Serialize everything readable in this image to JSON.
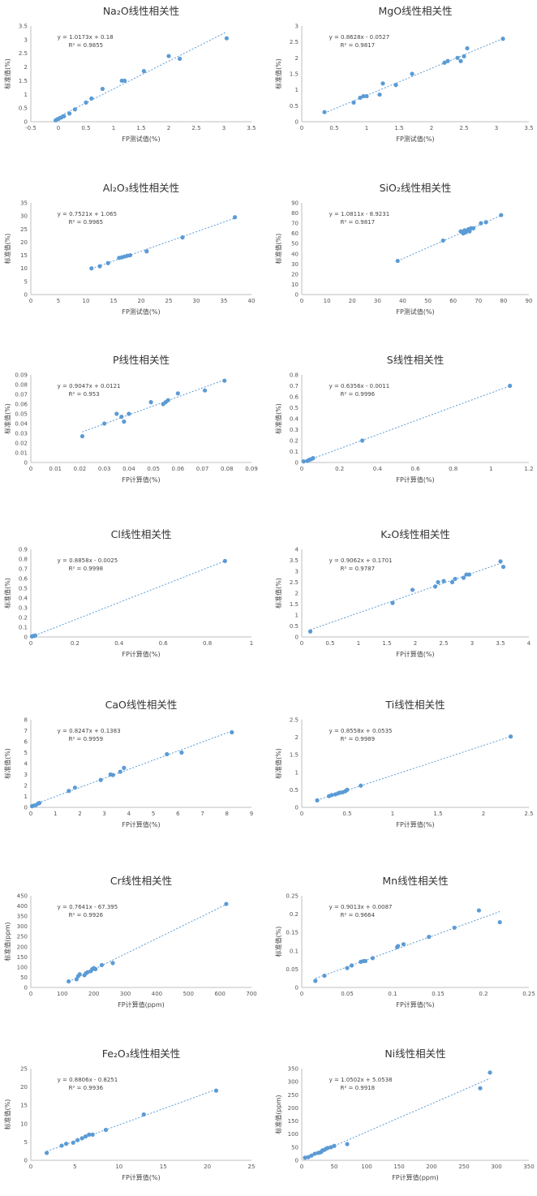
{
  "chart_data": [
    {
      "type": "scatter",
      "title": "Na₂O线性相关性",
      "xlabel": "FP测试值(%)",
      "ylabel": "标准值(%)",
      "xlim": [
        -0.5,
        3.5
      ],
      "ylim": [
        0,
        3.5
      ],
      "xticks": [
        -0.5,
        0,
        0.5,
        1,
        1.5,
        2,
        2.5,
        3,
        3.5
      ],
      "yticks": [
        0,
        0.5,
        1,
        1.5,
        2,
        2.5,
        3,
        3.5
      ],
      "equation": "y = 1.0173x + 0.18",
      "r2": "R² = 0.9855",
      "x": [
        -0.05,
        0,
        0.05,
        0.1,
        0.2,
        0.3,
        0.5,
        0.6,
        0.8,
        1.15,
        1.2,
        1.55,
        2.0,
        2.2,
        3.05
      ],
      "y": [
        0.05,
        0.1,
        0.15,
        0.2,
        0.3,
        0.45,
        0.7,
        0.85,
        1.2,
        1.5,
        1.5,
        1.85,
        2.4,
        2.3,
        3.05
      ]
    },
    {
      "type": "scatter",
      "title": "MgO线性相关性",
      "xlabel": "FP测试值(%)",
      "ylabel": "标准值(%)",
      "xlim": [
        0,
        3.5
      ],
      "ylim": [
        0,
        3
      ],
      "xticks": [
        0,
        0.5,
        1,
        1.5,
        2,
        2.5,
        3,
        3.5
      ],
      "yticks": [
        0,
        0.5,
        1,
        1.5,
        2,
        2.5,
        3
      ],
      "equation": "y = 0.8628x - 0.0527",
      "r2": "R² = 0.9817",
      "x": [
        0.35,
        0.8,
        0.9,
        0.95,
        1.0,
        1.2,
        1.25,
        1.45,
        1.7,
        2.2,
        2.25,
        2.4,
        2.45,
        2.5,
        2.55,
        3.1
      ],
      "y": [
        0.3,
        0.6,
        0.75,
        0.8,
        0.8,
        0.85,
        1.2,
        1.15,
        1.5,
        1.85,
        1.9,
        2.0,
        1.9,
        2.05,
        2.3,
        2.6
      ]
    },
    {
      "type": "scatter",
      "title": "Al₂O₃线性相关性",
      "xlabel": "FP测试值(%)",
      "ylabel": "标准值(%)",
      "xlim": [
        0,
        40
      ],
      "ylim": [
        0,
        35
      ],
      "xticks": [
        0,
        5,
        10,
        15,
        20,
        25,
        30,
        35,
        40
      ],
      "yticks": [
        0,
        5,
        10,
        15,
        20,
        25,
        30,
        35
      ],
      "equation": "y = 0.7521x + 1.065",
      "r2": "R² = 0.9965",
      "x": [
        11,
        12.5,
        14,
        16,
        16.5,
        17,
        17.5,
        18,
        21,
        27.5,
        37
      ],
      "y": [
        10,
        10.8,
        12,
        14,
        14.2,
        14.5,
        14.8,
        15,
        16.5,
        21.8,
        29.5
      ]
    },
    {
      "type": "scatter",
      "title": "SiO₂线性相关性",
      "xlabel": "FP测试值(%)",
      "ylabel": "标准值(%)",
      "xlim": [
        0,
        90
      ],
      "ylim": [
        0,
        90
      ],
      "xticks": [
        0,
        10,
        20,
        30,
        40,
        50,
        60,
        70,
        80,
        90
      ],
      "yticks": [
        0,
        10,
        20,
        30,
        40,
        50,
        60,
        70,
        80,
        90
      ],
      "equation": "y = 1.0811x - 8.9231",
      "r2": "R² = 0.9817",
      "x": [
        38,
        56,
        63,
        64,
        64.5,
        65,
        66,
        66.5,
        67,
        68,
        71,
        73,
        79
      ],
      "y": [
        33,
        53,
        62,
        60,
        63,
        61,
        64,
        62,
        65,
        65,
        70,
        71,
        78
      ]
    },
    {
      "type": "scatter",
      "title": "P线性相关性",
      "xlabel": "FP计算值(%)",
      "ylabel": "标准值(%)",
      "xlim": [
        0,
        0.09
      ],
      "ylim": [
        0,
        0.09
      ],
      "xticks": [
        0,
        0.01,
        0.02,
        0.03,
        0.04,
        0.05,
        0.06,
        0.07,
        0.08,
        0.09
      ],
      "yticks": [
        0,
        0.01,
        0.02,
        0.03,
        0.04,
        0.05,
        0.06,
        0.07,
        0.08,
        0.09
      ],
      "equation": "y = 0.9047x + 0.0121",
      "r2": "R² = 0.953",
      "x": [
        0.021,
        0.03,
        0.035,
        0.037,
        0.038,
        0.04,
        0.049,
        0.054,
        0.055,
        0.056,
        0.06,
        0.071,
        0.079
      ],
      "y": [
        0.027,
        0.04,
        0.05,
        0.047,
        0.042,
        0.05,
        0.062,
        0.06,
        0.062,
        0.064,
        0.071,
        0.074,
        0.084
      ]
    },
    {
      "type": "scatter",
      "title": "S线性相关性",
      "xlabel": "FP计算值(%)",
      "ylabel": "标准值(%)",
      "xlim": [
        0,
        1.2
      ],
      "ylim": [
        0,
        0.8
      ],
      "xticks": [
        0,
        0.2,
        0.4,
        0.6,
        0.8,
        1,
        1.2
      ],
      "yticks": [
        0,
        0.1,
        0.2,
        0.3,
        0.4,
        0.5,
        0.6,
        0.7,
        0.8
      ],
      "equation": "y = 0.6356x - 0.0011",
      "r2": "R² = 0.9996",
      "x": [
        0.01,
        0.03,
        0.04,
        0.05,
        0.06,
        0.32,
        1.1
      ],
      "y": [
        0.01,
        0.015,
        0.025,
        0.03,
        0.04,
        0.2,
        0.7
      ]
    },
    {
      "type": "scatter",
      "title": "Cl线性相关性",
      "xlabel": "FP计算值(%)",
      "ylabel": "标准值(%)",
      "xlim": [
        0,
        1
      ],
      "ylim": [
        0,
        0.9
      ],
      "xticks": [
        0,
        0.2,
        0.4,
        0.6,
        0.8,
        1
      ],
      "yticks": [
        0,
        0.1,
        0.2,
        0.3,
        0.4,
        0.5,
        0.6,
        0.7,
        0.8,
        0.9
      ],
      "equation": "y = 0.8858x - 0.0025",
      "r2": "R² = 0.9998",
      "x": [
        0.005,
        0.01,
        0.015,
        0.02,
        0.88
      ],
      "y": [
        0.005,
        0.01,
        0.01,
        0.015,
        0.78
      ]
    },
    {
      "type": "scatter",
      "title": "K₂O线性相关性",
      "xlabel": "FP计算值(%)",
      "ylabel": "标准值(%)",
      "xlim": [
        0,
        4
      ],
      "ylim": [
        0,
        4
      ],
      "xticks": [
        0,
        0.5,
        1,
        1.5,
        2,
        2.5,
        3,
        3.5,
        4
      ],
      "yticks": [
        0,
        0.5,
        1,
        1.5,
        2,
        2.5,
        3,
        3.5,
        4
      ],
      "equation": "y = 0.9062x + 0.1701",
      "r2": "R² = 0.9787",
      "x": [
        0.15,
        1.6,
        1.95,
        2.35,
        2.4,
        2.5,
        2.65,
        2.7,
        2.85,
        2.9,
        2.95,
        3.5,
        3.55
      ],
      "y": [
        0.25,
        1.55,
        2.15,
        2.3,
        2.5,
        2.55,
        2.5,
        2.65,
        2.7,
        2.85,
        2.85,
        3.45,
        3.2
      ]
    },
    {
      "type": "scatter",
      "title": "CaO线性相关性",
      "xlabel": "FP计算值(%)",
      "ylabel": "标准值(%)",
      "xlim": [
        0,
        9
      ],
      "ylim": [
        0,
        8
      ],
      "xticks": [
        0,
        1,
        2,
        3,
        4,
        5,
        6,
        7,
        8,
        9
      ],
      "yticks": [
        0,
        1,
        2,
        3,
        4,
        5,
        6,
        7,
        8
      ],
      "equation": "y = 0.8247x + 0.1383",
      "r2": "R² = 0.9959",
      "x": [
        0.05,
        0.1,
        0.2,
        0.3,
        0.35,
        1.55,
        1.8,
        2.85,
        3.25,
        3.35,
        3.65,
        3.8,
        5.55,
        6.15,
        8.2
      ],
      "y": [
        0.1,
        0.15,
        0.2,
        0.35,
        0.4,
        1.5,
        1.8,
        2.5,
        3.0,
        2.95,
        3.25,
        3.6,
        4.85,
        5.0,
        6.85
      ]
    },
    {
      "type": "scatter",
      "title": "Ti线性相关性",
      "xlabel": "FP计算值(%)",
      "ylabel": "标准值(%)",
      "xlim": [
        0,
        2.5
      ],
      "ylim": [
        0,
        2.5
      ],
      "xticks": [
        0,
        0.5,
        1,
        1.5,
        2,
        2.5
      ],
      "yticks": [
        0,
        0.5,
        1,
        1.5,
        2,
        2.5
      ],
      "equation": "y = 0.8558x + 0.0535",
      "r2": "R² = 0.9989",
      "x": [
        0.17,
        0.3,
        0.33,
        0.37,
        0.4,
        0.42,
        0.45,
        0.48,
        0.5,
        0.65,
        2.3
      ],
      "y": [
        0.2,
        0.32,
        0.35,
        0.37,
        0.4,
        0.42,
        0.43,
        0.46,
        0.5,
        0.62,
        2.02
      ]
    },
    {
      "type": "scatter",
      "title": "Cr线性相关性",
      "xlabel": "FP计算值(ppm)",
      "ylabel": "标准值(ppm)",
      "xlim": [
        0,
        700
      ],
      "ylim": [
        0,
        450
      ],
      "xticks": [
        0,
        100,
        200,
        300,
        400,
        500,
        600,
        700
      ],
      "yticks": [
        0,
        50,
        100,
        150,
        200,
        250,
        300,
        350,
        400,
        450
      ],
      "equation": "y = 0.7641x - 67.395",
      "r2": "R² = 0.9926",
      "x": [
        120,
        145,
        150,
        155,
        170,
        175,
        180,
        190,
        195,
        200,
        205,
        225,
        260,
        620
      ],
      "y": [
        30,
        40,
        55,
        65,
        60,
        70,
        75,
        80,
        90,
        95,
        90,
        110,
        120,
        410
      ]
    },
    {
      "type": "scatter",
      "title": "Mn线性相关性",
      "xlabel": "FP计算值(%)",
      "ylabel": "标准值(%)",
      "xlim": [
        0,
        0.25
      ],
      "ylim": [
        0,
        0.25
      ],
      "xticks": [
        0,
        0.05,
        0.1,
        0.15,
        0.2,
        0.25
      ],
      "yticks": [
        0,
        0.05,
        0.1,
        0.15,
        0.2,
        0.25
      ],
      "equation": "y = 0.9013x + 0.0087",
      "r2": "R² = 0.9664",
      "x": [
        0.015,
        0.025,
        0.05,
        0.055,
        0.065,
        0.068,
        0.07,
        0.078,
        0.105,
        0.106,
        0.112,
        0.14,
        0.168,
        0.195,
        0.218
      ],
      "y": [
        0.018,
        0.032,
        0.053,
        0.06,
        0.07,
        0.072,
        0.072,
        0.08,
        0.11,
        0.113,
        0.118,
        0.138,
        0.163,
        0.21,
        0.178
      ]
    },
    {
      "type": "scatter",
      "title": "Fe₂O₃线性相关性",
      "xlabel": "FP计算值(%)",
      "ylabel": "标准值(%)",
      "xlim": [
        0,
        25
      ],
      "ylim": [
        0,
        25
      ],
      "xticks": [
        0,
        5,
        10,
        15,
        20,
        25
      ],
      "yticks": [
        0,
        5,
        10,
        15,
        20,
        25
      ],
      "equation": "y = 0.8806x - 0.8251",
      "r2": "R² = 0.9936",
      "x": [
        1.8,
        3.5,
        4,
        4.8,
        5.3,
        5.8,
        6.2,
        6.6,
        7,
        8.5,
        12.8,
        21
      ],
      "y": [
        2,
        4,
        4.5,
        4.8,
        5.5,
        6,
        6.5,
        7,
        7,
        8.3,
        12.5,
        19
      ]
    },
    {
      "type": "scatter",
      "title": "Ni线性相关性",
      "xlabel": "FP计算值(ppm)",
      "ylabel": "标准值(ppm)",
      "xlim": [
        0,
        350
      ],
      "ylim": [
        0,
        350
      ],
      "xticks": [
        0,
        50,
        100,
        150,
        200,
        250,
        300,
        350
      ],
      "yticks": [
        0,
        50,
        100,
        150,
        200,
        250,
        300,
        350
      ],
      "equation": "y = 1.0502x + 5.0538",
      "r2": "R² = 0.9918",
      "x": [
        5,
        10,
        15,
        20,
        25,
        28,
        30,
        32,
        35,
        38,
        40,
        45,
        50,
        70,
        275,
        290
      ],
      "y": [
        10,
        12,
        18,
        25,
        28,
        30,
        32,
        38,
        40,
        45,
        47,
        50,
        55,
        62,
        275,
        335
      ]
    }
  ]
}
